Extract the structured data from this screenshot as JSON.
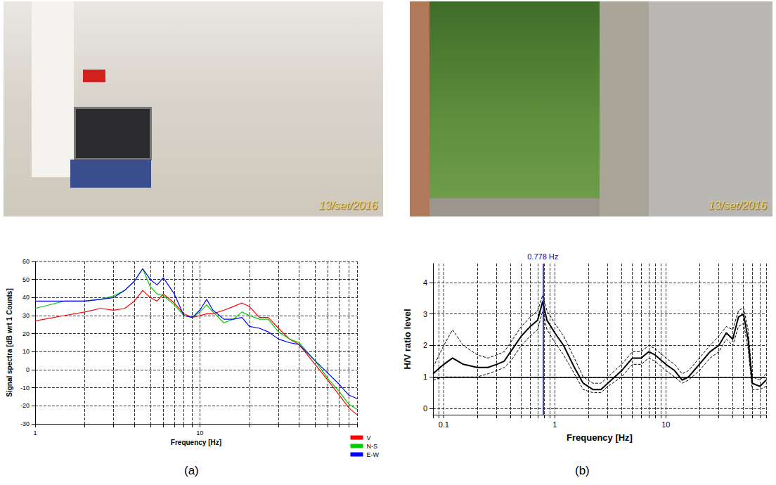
{
  "photos": [
    {
      "stamp": "13/set/2016"
    },
    {
      "stamp": "13/set/2016"
    }
  ],
  "panel_labels": [
    "(a)",
    "(b)"
  ],
  "chart_data": [
    {
      "type": "line",
      "x_label": "Frequency [Hz]",
      "y_label": "Signal spectra [dB wrt 1 Counts]",
      "log": "x",
      "grid": true,
      "legend": "bottom right",
      "xlim": [
        1,
        90
      ],
      "xticks": [
        1,
        10
      ],
      "ylim": [
        -30,
        60
      ],
      "yticks": [
        -30,
        -20,
        -10,
        0,
        10,
        20,
        30,
        40,
        50,
        60
      ],
      "x": [
        1,
        1.5,
        2,
        2.5,
        3,
        3.5,
        4,
        4.5,
        5,
        5.5,
        6,
        7,
        8,
        9,
        10,
        11,
        12,
        14,
        16,
        18,
        20,
        23,
        26,
        30,
        35,
        40,
        50,
        60,
        70,
        80,
        90
      ],
      "series": [
        {
          "name": "V",
          "color": "#ff0000",
          "line_style": "solid",
          "values": [
            27,
            30,
            32,
            34,
            33,
            34,
            38,
            44,
            40,
            38,
            42,
            37,
            31,
            29,
            30,
            31,
            31,
            33,
            35,
            37,
            35,
            29,
            29,
            23,
            17,
            14,
            3,
            -6,
            -14,
            -21,
            -25
          ]
        },
        {
          "name": "N-S",
          "color": "#00cc00",
          "line_style": "solid",
          "values": [
            34,
            38,
            38,
            39,
            41,
            44,
            49,
            56,
            46,
            42,
            41,
            36,
            30,
            29,
            32,
            36,
            32,
            26,
            28,
            32,
            30,
            28,
            28,
            21,
            17,
            15,
            5,
            -5,
            -12,
            -19,
            -22
          ]
        },
        {
          "name": "E-W",
          "color": "#0000ff",
          "line_style": "solid",
          "values": [
            38,
            38,
            38,
            39,
            40,
            44,
            49,
            56,
            50,
            47,
            51,
            42,
            30,
            29,
            33,
            39,
            33,
            28,
            28,
            29,
            24,
            23,
            21,
            17,
            15,
            14,
            5,
            -2,
            -8,
            -14,
            -16
          ]
        }
      ]
    },
    {
      "type": "line",
      "x_label": "Frequency [Hz]",
      "y_label": "H/V ratio level",
      "log": "x",
      "grid": true,
      "xlim": [
        0.08,
        80
      ],
      "xticks": [
        0.1,
        1,
        10
      ],
      "ylim": [
        -0.2,
        4.6
      ],
      "yticks": [
        0,
        1,
        2,
        3,
        4
      ],
      "x": [
        0.08,
        0.1,
        0.12,
        0.15,
        0.2,
        0.25,
        0.3,
        0.35,
        0.4,
        0.5,
        0.6,
        0.7,
        0.778,
        0.85,
        1,
        1.2,
        1.5,
        1.8,
        2.2,
        2.6,
        3,
        4,
        5,
        6,
        7,
        8,
        10,
        12,
        14,
        16,
        20,
        25,
        30,
        35,
        40,
        45,
        50,
        55,
        60,
        70,
        80
      ],
      "series": [
        {
          "color": "#000000",
          "line_style": "solid",
          "values": [
            1.1,
            1.4,
            1.6,
            1.4,
            1.3,
            1.3,
            1.4,
            1.5,
            1.8,
            2.3,
            2.6,
            2.8,
            3.4,
            2.8,
            2.4,
            2.0,
            1.3,
            0.8,
            0.6,
            0.6,
            0.8,
            1.2,
            1.6,
            1.6,
            1.8,
            1.7,
            1.4,
            1.2,
            0.9,
            1.0,
            1.4,
            1.8,
            2.0,
            2.4,
            2.2,
            2.9,
            3.0,
            2.2,
            0.8,
            0.7,
            0.9
          ]
        },
        {
          "color": "#000000",
          "line_style": "dashed",
          "values": [
            1.3,
            2.0,
            2.5,
            2.0,
            1.7,
            1.6,
            1.7,
            1.8,
            2.1,
            2.6,
            2.9,
            3.1,
            3.6,
            3.1,
            2.7,
            2.3,
            1.6,
            1.0,
            0.8,
            0.8,
            1.0,
            1.4,
            1.8,
            1.8,
            2.0,
            1.9,
            1.6,
            1.4,
            1.1,
            1.2,
            1.6,
            2.0,
            2.3,
            2.6,
            2.5,
            3.1,
            3.2,
            2.5,
            1.0,
            0.9,
            1.1
          ]
        },
        {
          "color": "#000000",
          "line_style": "dashed",
          "values": [
            0.9,
            1.0,
            1.0,
            1.0,
            1.0,
            1.1,
            1.2,
            1.3,
            1.5,
            2.0,
            2.3,
            2.5,
            3.1,
            2.5,
            2.1,
            1.7,
            1.1,
            0.6,
            0.5,
            0.5,
            0.7,
            1.0,
            1.4,
            1.4,
            1.6,
            1.5,
            1.2,
            1.0,
            0.8,
            0.9,
            1.2,
            1.6,
            1.8,
            2.2,
            2.0,
            2.6,
            2.7,
            1.9,
            0.6,
            0.6,
            0.7
          ]
        }
      ],
      "annotations": [
        {
          "type": "vline",
          "x": 0.778,
          "label": "0.778 Hz",
          "color": "#0000cc"
        },
        {
          "type": "hline",
          "y": 1,
          "color": "#000000"
        }
      ]
    }
  ]
}
